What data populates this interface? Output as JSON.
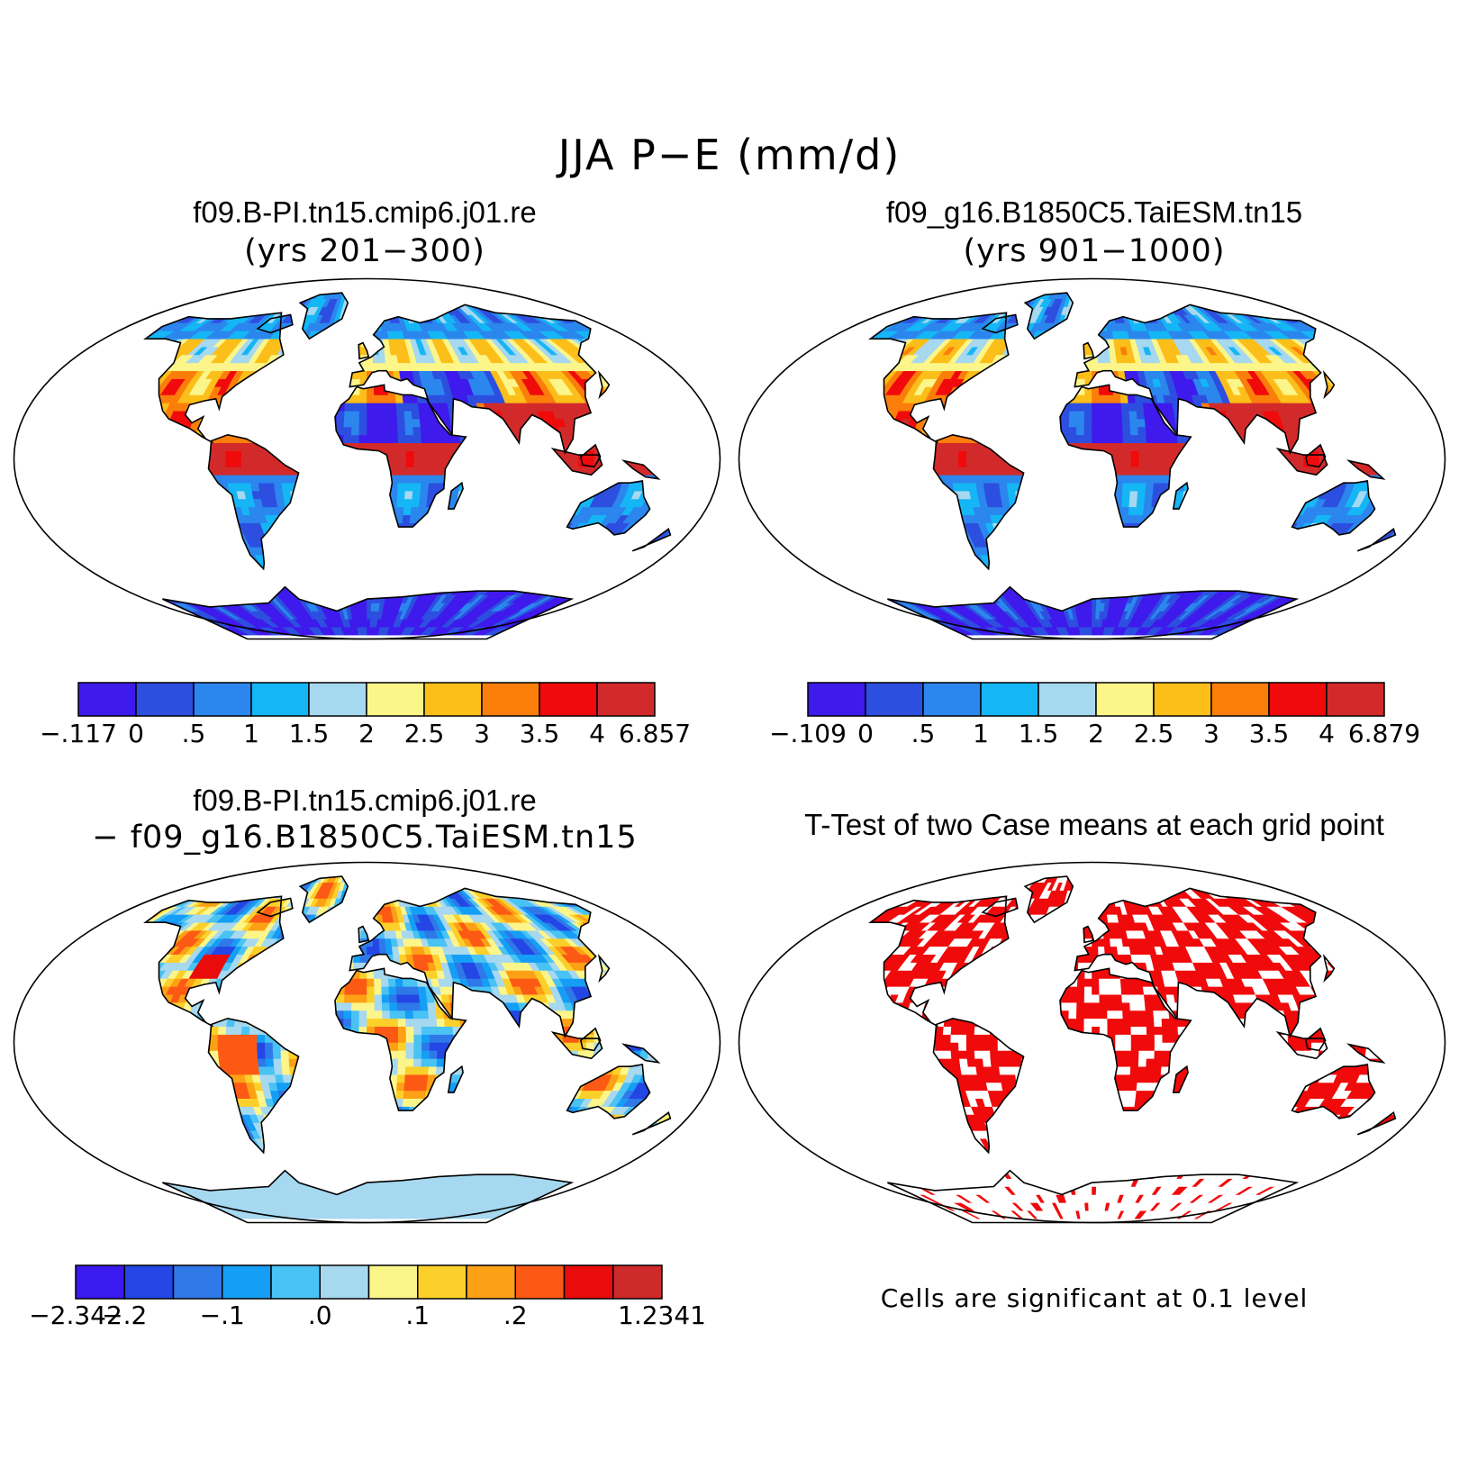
{
  "figure": {
    "title": "JJA P−E (mm/d)"
  },
  "panels": [
    {
      "id": "case1",
      "title": "f09.B-PI.tn15.cmip6.j01.re",
      "subtitle": "(yrs 201−300)",
      "field": "case",
      "colorbar": {
        "colors": [
          "#3f1aec",
          "#2d4fe0",
          "#2b86ee",
          "#15b6f5",
          "#a6d8f0",
          "#fbf58a",
          "#fcbe19",
          "#fb7e0b",
          "#f00a0b",
          "#d22a2b"
        ],
        "labels": [
          "−.117",
          "0",
          ".5",
          "1",
          "1.5",
          "2",
          "2.5",
          "3",
          "3.5",
          "4",
          "6.857"
        ]
      }
    },
    {
      "id": "case2",
      "title": "f09_g16.B1850C5.TaiESM.tn15",
      "subtitle": "(yrs 901−1000)",
      "field": "case",
      "colorbar": {
        "colors": [
          "#3f1aec",
          "#2d4fe0",
          "#2b86ee",
          "#15b6f5",
          "#a6d8f0",
          "#fbf58a",
          "#fcbe19",
          "#fb7e0b",
          "#f00a0b",
          "#d22a2b"
        ],
        "labels": [
          "−.109",
          "0",
          ".5",
          "1",
          "1.5",
          "2",
          "2.5",
          "3",
          "3.5",
          "4",
          "6.879"
        ]
      }
    },
    {
      "id": "diff",
      "title": "f09.B-PI.tn15.cmip6.j01.re",
      "subtitle": "− f09_g16.B1850C5.TaiESM.tn15",
      "field": "difference",
      "colorbar": {
        "colors": [
          "#3a1aee",
          "#2346e5",
          "#2f78e8",
          "#159ef5",
          "#49c2f4",
          "#a6d8f0",
          "#fbf58a",
          "#fcd02a",
          "#fca015",
          "#fc5a14",
          "#ea0b0b",
          "#cf2a2b"
        ],
        "labels": [
          "−2.342",
          "−.2",
          "",
          "−.1",
          "",
          ".0",
          "",
          ".1",
          "",
          ".2",
          "",
          "",
          "1.2341"
        ]
      }
    },
    {
      "id": "ttest",
      "title": "T-Test of two Case means at each grid point",
      "note": "Cells are significant at 0.1 level",
      "field": "significance",
      "significant_color": "#f00a0b"
    }
  ]
}
